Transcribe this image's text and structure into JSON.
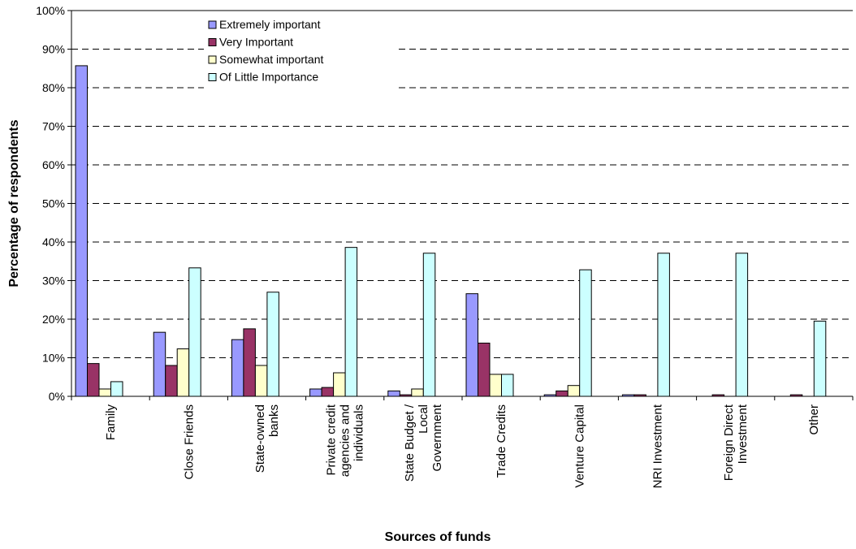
{
  "chart_data": {
    "type": "bar",
    "title": "",
    "xlabel": "Sources of funds",
    "ylabel": "Percentage of respondents",
    "ylim": [
      0,
      100
    ],
    "yticks": [
      "0%",
      "10%",
      "20%",
      "30%",
      "40%",
      "50%",
      "60%",
      "70%",
      "80%",
      "90%",
      "100%"
    ],
    "grid": "dashed horizontal",
    "legend_position": "top-left",
    "categories": [
      [
        "Family"
      ],
      [
        "Close Friends"
      ],
      [
        "State-owned",
        "banks"
      ],
      [
        "Private credit",
        "agencies and",
        "individuals"
      ],
      [
        "State Budget /",
        "Local",
        "Government"
      ],
      [
        "Trade Credits"
      ],
      [
        "Venture Capital"
      ],
      [
        "NRI Investment"
      ],
      [
        "Foreign Direct",
        "Investment"
      ],
      [
        "Other"
      ]
    ],
    "series": [
      {
        "name": "Extremely important",
        "color": "#9999ff",
        "values": [
          85.7,
          16.6,
          14.7,
          1.9,
          1.4,
          26.6,
          0.4,
          0.4,
          0,
          0
        ]
      },
      {
        "name": "Very Important",
        "color": "#993366",
        "values": [
          8.5,
          8.0,
          17.5,
          2.3,
          0.4,
          13.8,
          1.4,
          0.4,
          0.4,
          0.4
        ]
      },
      {
        "name": "Somewhat important",
        "color": "#ffffcc",
        "values": [
          1.9,
          12.3,
          8.0,
          6.1,
          1.9,
          5.7,
          2.8,
          0,
          0,
          0
        ]
      },
      {
        "name": "Of Little Importance",
        "color": "#ccffff",
        "values": [
          3.8,
          33.3,
          27.0,
          38.6,
          37.1,
          5.7,
          32.8,
          37.1,
          37.1,
          19.5
        ]
      }
    ]
  }
}
